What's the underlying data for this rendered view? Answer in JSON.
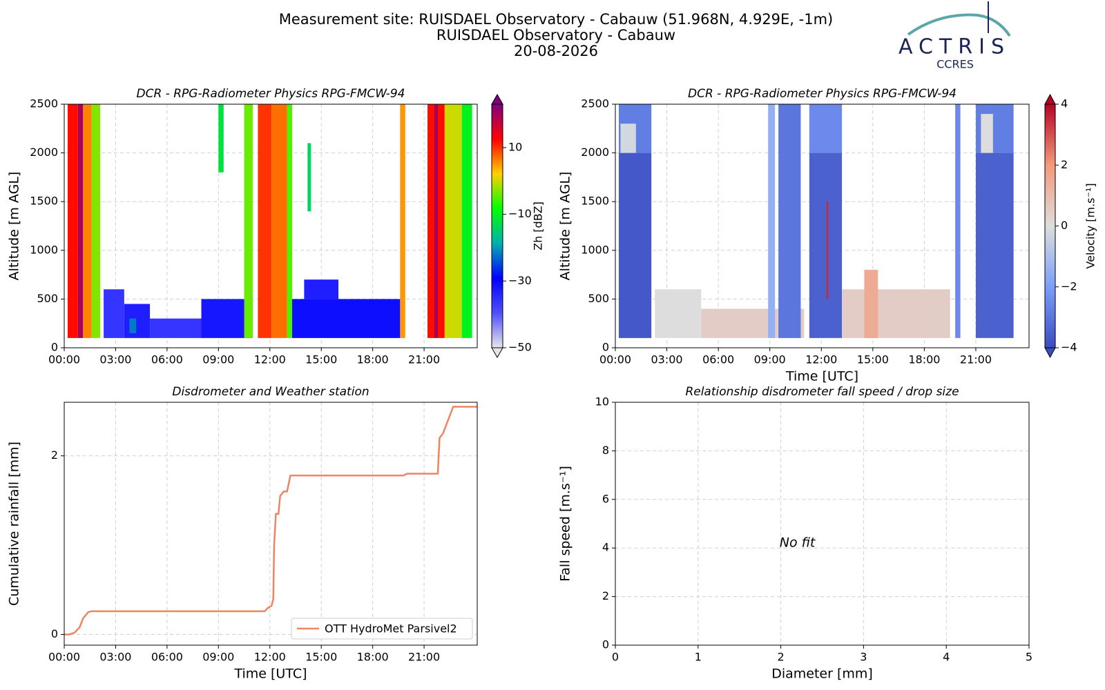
{
  "header": {
    "title_lines": [
      "Measurement site: RUISDAEL Observatory - Cabauw (51.968N, 4.929E, -1m)",
      "RUISDAEL Observatory - Cabauw",
      "20-08-2026"
    ],
    "logo": "ACTRIS",
    "logo_sub": "CCRES"
  },
  "chart_data": [
    {
      "type": "heatmap",
      "title": "DCR - RPG-Radiometer Physics RPG-FMCW-94",
      "ylabel": "Altitude [m AGL]",
      "xlim": [
        0,
        24.1
      ],
      "xticks": [
        {
          "value": 0,
          "label": "00:00"
        },
        {
          "value": 3,
          "label": "03:00"
        },
        {
          "value": 6,
          "label": "06:00"
        },
        {
          "value": 9,
          "label": "09:00"
        },
        {
          "value": 12,
          "label": "12:00"
        },
        {
          "value": 15,
          "label": "15:00"
        },
        {
          "value": 18,
          "label": "18:00"
        },
        {
          "value": 21,
          "label": "21:00"
        }
      ],
      "ylim": [
        0,
        2500
      ],
      "yticks": [
        0,
        500,
        1000,
        1500,
        2000,
        2500
      ],
      "grid": true,
      "colorbar_label": "Zh [dBZ]",
      "clim": [
        -50,
        23
      ],
      "cticks": [
        10,
        {
          "value": -10,
          "label": "−10"
        },
        {
          "value": -30,
          "label": "−30"
        },
        {
          "value": -50,
          "label": "−50"
        }
      ],
      "colormap": [
        "#e6e6e6",
        "#5050ff",
        "#0000ff",
        "#00b0b0",
        "#00ff00",
        "#ffd000",
        "#ff0000",
        "#800080"
      ],
      "cells": [
        {
          "x": [
            0.2,
            0.8
          ],
          "y": [
            100,
            2500
          ],
          "value": 12
        },
        {
          "x": [
            0.8,
            1.1
          ],
          "y": [
            100,
            2500
          ],
          "value": 20
        },
        {
          "x": [
            1.1,
            1.6
          ],
          "y": [
            100,
            2500
          ],
          "value": 6
        },
        {
          "x": [
            1.6,
            2.1
          ],
          "y": [
            100,
            2500
          ],
          "value": -3
        },
        {
          "x": [
            2.3,
            3.5
          ],
          "y": [
            100,
            600
          ],
          "value": -36
        },
        {
          "x": [
            3.5,
            5
          ],
          "y": [
            100,
            450
          ],
          "value": -33
        },
        {
          "x": [
            3.8,
            4.2
          ],
          "y": [
            150,
            300
          ],
          "value": -22
        },
        {
          "x": [
            5,
            8
          ],
          "y": [
            100,
            300
          ],
          "value": -36
        },
        {
          "x": [
            8,
            11
          ],
          "y": [
            100,
            500
          ],
          "value": -32
        },
        {
          "x": [
            9,
            9.3
          ],
          "y": [
            1800,
            2500
          ],
          "value": -12
        },
        {
          "x": [
            10.5,
            11
          ],
          "y": [
            100,
            2500
          ],
          "value": -4
        },
        {
          "x": [
            11.3,
            12.1
          ],
          "y": [
            100,
            2500
          ],
          "value": 10
        },
        {
          "x": [
            12.1,
            13
          ],
          "y": [
            100,
            2500
          ],
          "value": 7
        },
        {
          "x": [
            13,
            13.3
          ],
          "y": [
            100,
            2500
          ],
          "value": -5
        },
        {
          "x": [
            13.3,
            19.6
          ],
          "y": [
            100,
            500
          ],
          "value": -31
        },
        {
          "x": [
            14,
            16
          ],
          "y": [
            500,
            700
          ],
          "value": -33
        },
        {
          "x": [
            14.2,
            14.4
          ],
          "y": [
            1400,
            2100
          ],
          "value": -14
        },
        {
          "x": [
            19.6,
            19.9
          ],
          "y": [
            100,
            2500
          ],
          "value": 5
        },
        {
          "x": [
            21.2,
            22.2
          ],
          "y": [
            100,
            2500
          ],
          "value": 12
        },
        {
          "x": [
            21.6,
            21.8
          ],
          "y": [
            100,
            2500
          ],
          "value": 20
        },
        {
          "x": [
            22.2,
            23.2
          ],
          "y": [
            100,
            2500
          ],
          "value": 0
        },
        {
          "x": [
            23.2,
            23.8
          ],
          "y": [
            100,
            2500
          ],
          "value": -10
        }
      ]
    },
    {
      "type": "heatmap",
      "title": "DCR - RPG-Radiometer Physics RPG-FMCW-94",
      "ylabel": "Altitude [m AGL]",
      "xlabel": "Time [UTC]",
      "xlim": [
        0,
        24.1
      ],
      "xticks": [
        {
          "value": 0,
          "label": "00:00"
        },
        {
          "value": 3,
          "label": "03:00"
        },
        {
          "value": 6,
          "label": "06:00"
        },
        {
          "value": 9,
          "label": "09:00"
        },
        {
          "value": 12,
          "label": "12:00"
        },
        {
          "value": 15,
          "label": "15:00"
        },
        {
          "value": 18,
          "label": "18:00"
        },
        {
          "value": 21,
          "label": "21:00"
        }
      ],
      "ylim": [
        0,
        2500
      ],
      "yticks": [
        0,
        500,
        1000,
        1500,
        2000,
        2500
      ],
      "grid": true,
      "colorbar_label": "Velocity [m.s⁻¹]",
      "clim": [
        -4,
        4
      ],
      "cticks": [
        4,
        2,
        0,
        {
          "value": -2,
          "label": "−2"
        },
        {
          "value": -4,
          "label": "−4"
        }
      ],
      "colormap": [
        "#3b4cc0",
        "#7b9ff9",
        "#dddddd",
        "#f49a7b",
        "#b40426"
      ],
      "cells": [
        {
          "x": [
            0.2,
            2.1
          ],
          "y": [
            100,
            2000
          ],
          "value": -3.7
        },
        {
          "x": [
            0.2,
            2.1
          ],
          "y": [
            2000,
            2500
          ],
          "value": -2.8
        },
        {
          "x": [
            0.3,
            1.2
          ],
          "y": [
            2000,
            2300
          ],
          "value": -0.2
        },
        {
          "x": [
            2.3,
            5
          ],
          "y": [
            100,
            600
          ],
          "value": 0
        },
        {
          "x": [
            5,
            11
          ],
          "y": [
            100,
            400
          ],
          "value": 0.5
        },
        {
          "x": [
            8.9,
            9.3
          ],
          "y": [
            100,
            2500
          ],
          "value": -1.5
        },
        {
          "x": [
            9.5,
            10.8
          ],
          "y": [
            100,
            2500
          ],
          "value": -3
        },
        {
          "x": [
            11.3,
            13.2
          ],
          "y": [
            100,
            2000
          ],
          "value": -3.5
        },
        {
          "x": [
            11.3,
            13.2
          ],
          "y": [
            2000,
            2500
          ],
          "value": -2.5
        },
        {
          "x": [
            12.3,
            12.4
          ],
          "y": [
            500,
            1500
          ],
          "value": 3.5
        },
        {
          "x": [
            13.2,
            19.5
          ],
          "y": [
            100,
            600
          ],
          "value": 0.5
        },
        {
          "x": [
            14.5,
            15.3
          ],
          "y": [
            100,
            800
          ],
          "value": 1.5
        },
        {
          "x": [
            19.8,
            20.1
          ],
          "y": [
            100,
            2500
          ],
          "value": -2.5
        },
        {
          "x": [
            21,
            23.2
          ],
          "y": [
            100,
            2000
          ],
          "value": -3.5
        },
        {
          "x": [
            21,
            23.2
          ],
          "y": [
            2000,
            2500
          ],
          "value": -2.8
        },
        {
          "x": [
            21.3,
            22
          ],
          "y": [
            2000,
            2400
          ],
          "value": 0
        }
      ]
    },
    {
      "type": "line",
      "title": "Disdrometer and Weather station",
      "ylabel": "Cumulative rainfall [mm]",
      "xlabel": "Time [UTC]",
      "xlim": [
        0,
        24.1
      ],
      "xticks": [
        {
          "value": 0,
          "label": "00:00"
        },
        {
          "value": 3,
          "label": "03:00"
        },
        {
          "value": 6,
          "label": "06:00"
        },
        {
          "value": 9,
          "label": "09:00"
        },
        {
          "value": 12,
          "label": "12:00"
        },
        {
          "value": 15,
          "label": "15:00"
        },
        {
          "value": 18,
          "label": "18:00"
        },
        {
          "value": 21,
          "label": "21:00"
        }
      ],
      "ylim": [
        -0.12,
        2.6
      ],
      "yticks": [
        0,
        2
      ],
      "grid": true,
      "legend": "lower right",
      "x": [
        0,
        0.3,
        0.6,
        0.9,
        1.1,
        1.4,
        1.6,
        11.7,
        11.9,
        12.1,
        12.2,
        12.25,
        12.35,
        12.5,
        12.6,
        12.8,
        13,
        13.2,
        19.8,
        20,
        21.8,
        21.9,
        22.1,
        22.4,
        22.7,
        24.1
      ],
      "series": [
        {
          "name": "OTT HydroMet Parsivel2",
          "color": "#ee8560",
          "values": [
            0,
            0,
            0.02,
            0.08,
            0.18,
            0.25,
            0.26,
            0.26,
            0.3,
            0.32,
            0.4,
            1.0,
            1.35,
            1.35,
            1.55,
            1.6,
            1.6,
            1.78,
            1.78,
            1.8,
            1.8,
            2.2,
            2.25,
            2.4,
            2.55,
            2.55
          ]
        }
      ]
    },
    {
      "type": "scatter",
      "title": "Relationship disdrometer fall speed / drop size",
      "ylabel": "Fall speed [m.s⁻¹]",
      "xlabel": "Diameter [mm]",
      "xlim": [
        0,
        5
      ],
      "xticks": [
        0,
        1,
        2,
        3,
        4,
        5
      ],
      "ylim": [
        0,
        10
      ],
      "yticks": [
        0,
        2,
        4,
        6,
        8,
        10
      ],
      "grid": true,
      "annotation": {
        "text": "No fit",
        "x": 2.2,
        "y": 4.2
      }
    }
  ]
}
